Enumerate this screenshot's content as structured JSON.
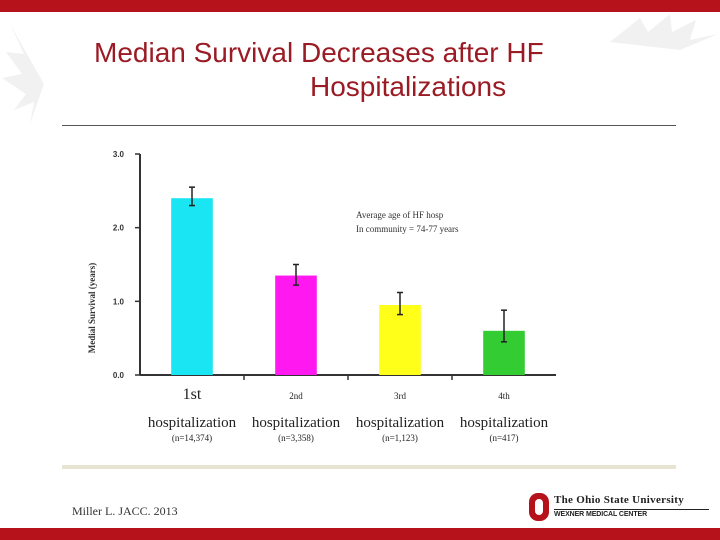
{
  "slide": {
    "title_line1": "Median Survival Decreases after HF",
    "title_line2": "Hospitalizations",
    "citation": "Miller L. JACC. 2013",
    "logo_name": "The Ohio State University",
    "logo_sub": "WEXNER MEDICAL CENTER",
    "colors": {
      "brand_red": "#b5121b",
      "title_red": "#9b1b24"
    }
  },
  "chart_data": {
    "type": "bar",
    "ylabel": "Medial Survival (years)",
    "ylim": [
      0,
      3
    ],
    "yticks": [
      "0.0",
      "1.0",
      "2.0",
      "3.0"
    ],
    "categories": [
      {
        "main": "1st",
        "sub": "hospitalization",
        "n": "(n=14,374)"
      },
      {
        "main": "2nd",
        "sub": "hospitalization",
        "n": "(n=3,358)"
      },
      {
        "main": "3rd",
        "sub": "hospitalization",
        "n": "(n=1,123)"
      },
      {
        "main": "4th",
        "sub": "hospitalization",
        "n": "(n=417)"
      }
    ],
    "values": [
      2.4,
      1.35,
      0.95,
      0.6
    ],
    "error_high": [
      2.55,
      1.5,
      1.12,
      0.88
    ],
    "error_low": [
      2.3,
      1.22,
      0.82,
      0.45
    ],
    "colors": [
      "#19e6f2",
      "#ff19f0",
      "#ffff19",
      "#33cc33"
    ],
    "annotation": [
      "Average age of HF hosp",
      "In community = 74-77 years"
    ]
  }
}
